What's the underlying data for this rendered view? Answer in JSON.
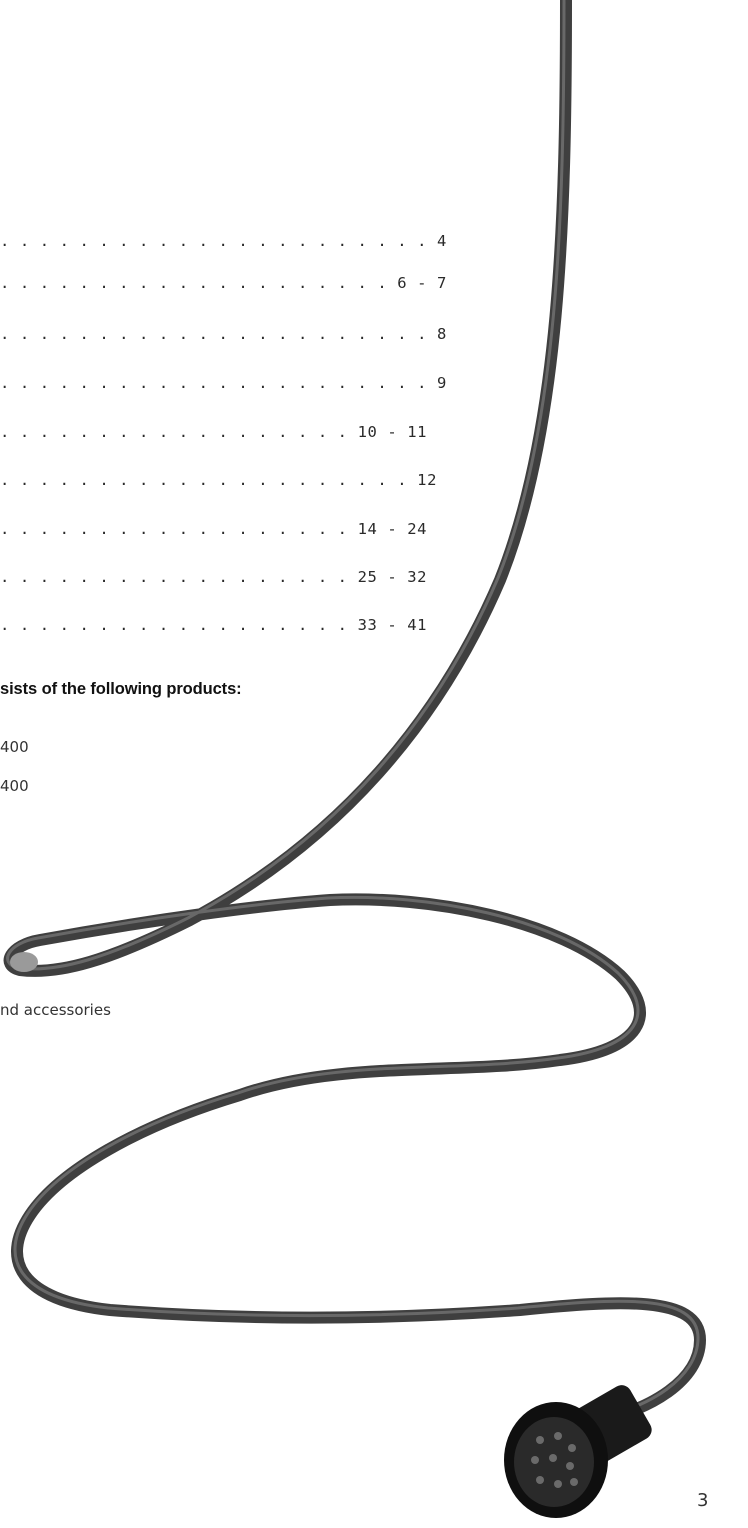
{
  "toc": {
    "entries": [
      {
        "dots": ". . . . . . . . . . . . . . . . . . . . . .",
        "page": "4"
      },
      {
        "dots": ". . . . . . . . . . . . . . . . . . . .",
        "page": "6 - 7"
      },
      {
        "dots": ". . . . . . . . . . . . . . . . . . . . . .",
        "page": "8"
      },
      {
        "dots": ". . . . . . . . . . . . . . . . . . . . . .",
        "page": "9"
      },
      {
        "dots": ". . . . . . . . . . . . . . . . . .",
        "page": "10 - 11"
      },
      {
        "dots": ". . . . . . . . . . . . . . . . . . . . .",
        "page": "12"
      },
      {
        "dots": ". . . . . . . . . . . . . . . . . .",
        "page": "14 - 24"
      },
      {
        "dots": ". . . . . . . . . . . . . . . . . .",
        "page": "25 - 32"
      },
      {
        "dots": ". . . . . . . . . . . . . . . . . .",
        "page": "33 - 41"
      }
    ]
  },
  "products": {
    "heading": "sists of the following products:",
    "items": [
      "400",
      "400",
      "nd accessories"
    ]
  },
  "page_number": "3",
  "colors": {
    "cable": "#3f3f3f",
    "cable_highlight": "#8a8a8a",
    "connector": "#1a1a1a"
  }
}
